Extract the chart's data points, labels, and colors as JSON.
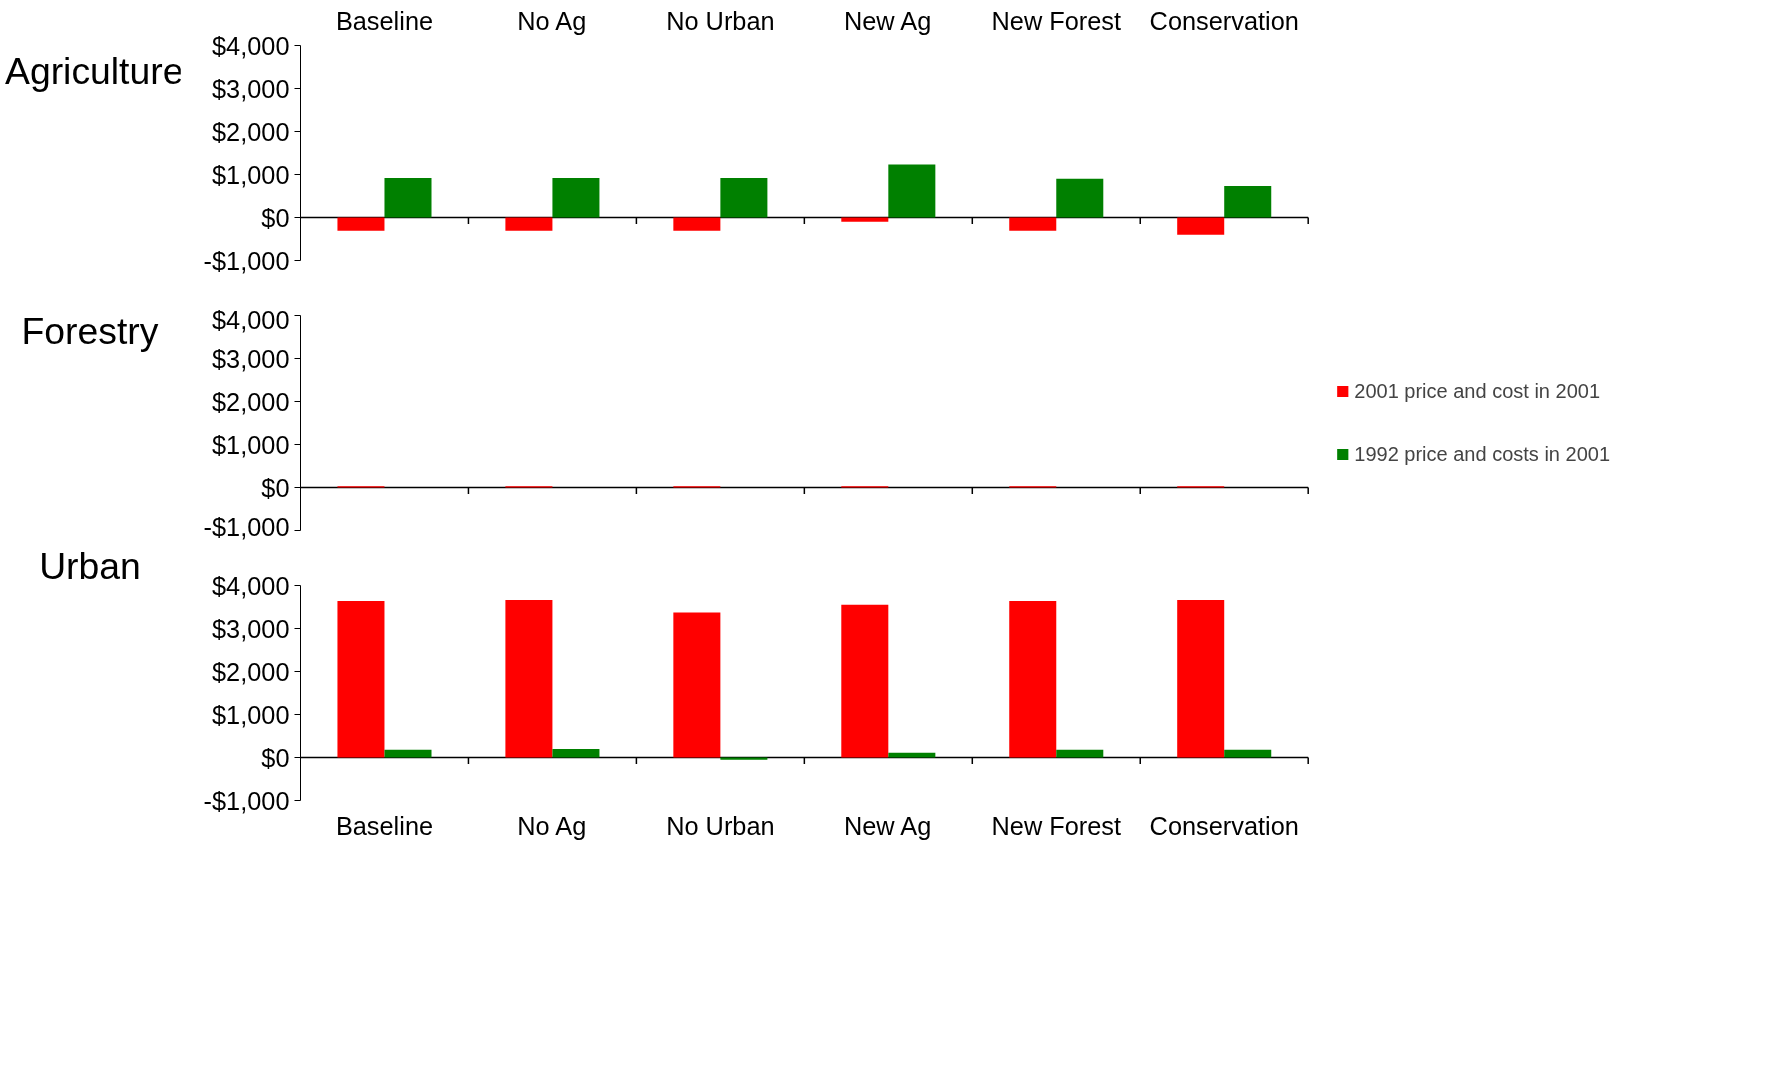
{
  "chart_data": [
    {
      "type": "bar",
      "title": "Agriculture",
      "categories": [
        "Baseline",
        "No Ag",
        "No Urban",
        "New Ag",
        "New Forest",
        "Conservation"
      ],
      "series": [
        {
          "color": "#ff0000",
          "values": [
            -310,
            -310,
            -310,
            -100,
            -310,
            -400
          ]
        },
        {
          "color": "#008000",
          "values": [
            920,
            920,
            920,
            1230,
            900,
            730
          ]
        }
      ],
      "ylim": [
        -1000,
        4000
      ],
      "yticks": [
        {
          "value": -1000,
          "label": "-$1,000"
        },
        {
          "value": 0,
          "label": "$0"
        },
        {
          "value": 1000,
          "label": "$1,000"
        },
        {
          "value": 2000,
          "label": "$2,000"
        },
        {
          "value": 3000,
          "label": "$3,000"
        },
        {
          "value": 4000,
          "label": "$4,000"
        }
      ]
    },
    {
      "type": "bar",
      "title": "Forestry",
      "categories": [
        null,
        null,
        null,
        null,
        null,
        null
      ],
      "series": [
        {
          "name": "2001 price and cost in 2001",
          "color": "#ff0000",
          "values": [
            30,
            30,
            30,
            30,
            30,
            30
          ]
        },
        {
          "name": "1992 price and costs in 2001",
          "color": "#008000",
          "values": [
            0,
            0,
            0,
            0,
            0,
            0
          ]
        }
      ],
      "ylim": [
        -1000,
        4000
      ],
      "yticks": [
        {
          "value": -1000,
          "label": "-$1,000"
        },
        {
          "value": 0,
          "label": "$0"
        },
        {
          "value": 1000,
          "label": "$1,000"
        },
        {
          "value": 2000,
          "label": "$2,000"
        },
        {
          "value": 3000,
          "label": "$3,000"
        },
        {
          "value": 4000,
          "label": "$4,000"
        }
      ],
      "legend": "right"
    },
    {
      "type": "bar",
      "title": "Urban",
      "categories": [
        "Baseline",
        "No Ag",
        "No Urban",
        "New Ag",
        "New Forest",
        "Conservation"
      ],
      "series": [
        {
          "color": "#ff0000",
          "values": [
            3640,
            3660,
            3370,
            3550,
            3640,
            3660
          ]
        },
        {
          "color": "#008000",
          "values": [
            180,
            200,
            -50,
            110,
            180,
            180
          ]
        }
      ],
      "ylim": [
        -1000,
        4000
      ],
      "yticks": [
        {
          "value": -1000,
          "label": "-$1,000"
        },
        {
          "value": 0,
          "label": "$0"
        },
        {
          "value": 1000,
          "label": "$1,000"
        },
        {
          "value": 2000,
          "label": "$2,000"
        },
        {
          "value": 3000,
          "label": "$3,000"
        },
        {
          "value": 4000,
          "label": "$4,000"
        }
      ]
    }
  ]
}
